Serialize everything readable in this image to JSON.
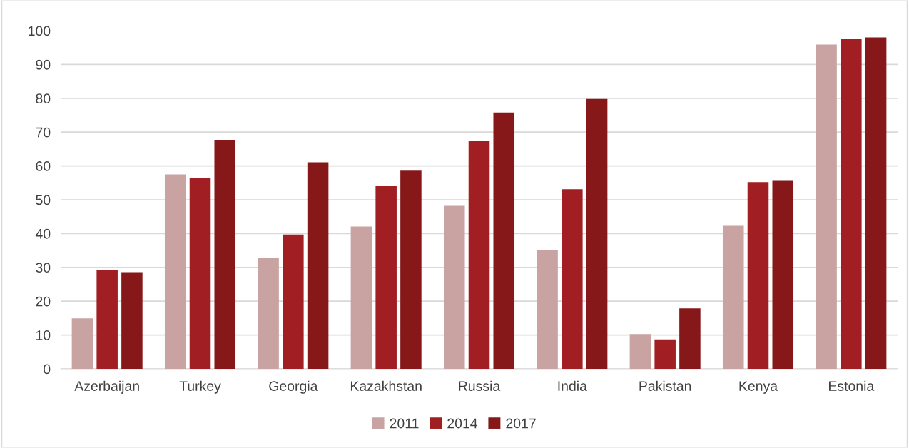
{
  "chart_data": {
    "type": "bar",
    "categories": [
      "Azerbaijan",
      "Turkey",
      "Georgia",
      "Kazakhstan",
      "Russia",
      "India",
      "Pakistan",
      "Kenya",
      "Estonia"
    ],
    "series": [
      {
        "name": "2011",
        "color": "#c9a2a2",
        "values": [
          14.9,
          57.5,
          32.9,
          42.1,
          48.2,
          35.2,
          10.3,
          42.3,
          95.9
        ]
      },
      {
        "name": "2014",
        "color": "#a11f22",
        "values": [
          29.1,
          56.5,
          39.7,
          54.0,
          67.3,
          53.1,
          8.7,
          55.2,
          97.7
        ]
      },
      {
        "name": "2017",
        "color": "#861819",
        "values": [
          28.6,
          67.7,
          61.1,
          58.6,
          75.8,
          79.8,
          17.9,
          55.6,
          98.0
        ]
      }
    ],
    "ylim": [
      0,
      100
    ],
    "yticks": [
      0,
      10,
      20,
      30,
      40,
      50,
      60,
      70,
      80,
      90,
      100
    ],
    "grid": "y",
    "legend": "bottom"
  }
}
